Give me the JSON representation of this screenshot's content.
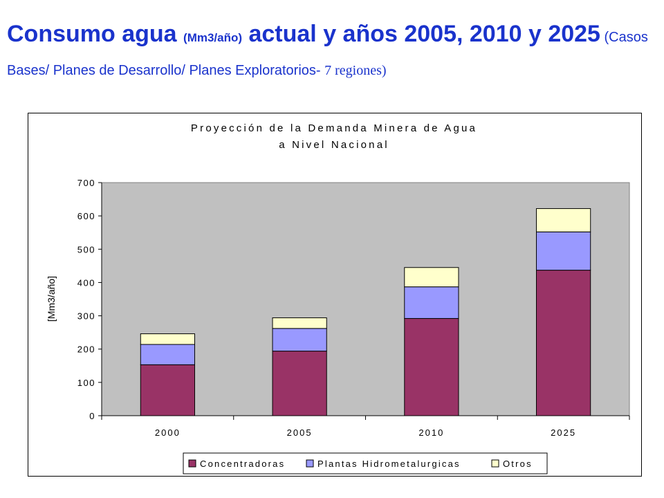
{
  "slide": {
    "title_part1": "Consumo agua ",
    "title_unit": "(Mm3/año)",
    "title_part2": " actual y años 2005, 2010 y 2025",
    "title_paren": " (Casos Bases/ Planes de Desarrollo/ Planes Exploratorios- ",
    "title_regions": "7 regiones)"
  },
  "colors": {
    "title": "#1a33cc",
    "plot_bg": "#c0c0c0",
    "concentradoras": "#993366",
    "plantas": "#9999ff",
    "otros": "#ffffcc"
  },
  "chart_data": {
    "type": "bar",
    "stacked": true,
    "title_line1": "Proyección de la Demanda Minera de Agua",
    "title_line2": "a Nivel Nacional",
    "ylabel": "[Mm3/año]",
    "xlabel": "",
    "ylim": [
      0,
      700
    ],
    "yticks": [
      0,
      100,
      200,
      300,
      400,
      500,
      600,
      700
    ],
    "ytick_labels": [
      "0",
      "100",
      "200",
      "300",
      "400",
      "500",
      "600",
      "700"
    ],
    "categories": [
      "2000",
      "2005",
      "2010",
      "2025"
    ],
    "series": [
      {
        "name": "Concentradoras",
        "values": [
          153,
          194,
          292,
          437
        ]
      },
      {
        "name": "Plantas Hidrometalurgicas",
        "values": [
          61,
          68,
          95,
          115
        ]
      },
      {
        "name": "Otros",
        "values": [
          32,
          32,
          58,
          70
        ]
      }
    ],
    "legend_position": "bottom",
    "grid": false
  }
}
